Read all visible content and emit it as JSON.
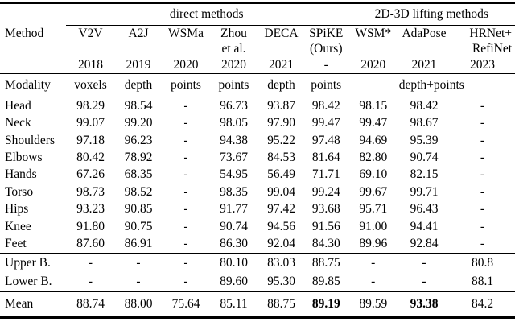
{
  "table": {
    "group_headers": {
      "left": "direct methods",
      "right": "2D-3D lifting methods"
    },
    "corner_label": "Method",
    "modality_label": "Modality",
    "lifting_modality": "depth+points",
    "columns": [
      {
        "name": "V2V",
        "sub": "",
        "year": "2018",
        "modality": "voxels"
      },
      {
        "name": "A2J",
        "sub": "",
        "year": "2019",
        "modality": "depth"
      },
      {
        "name": "WSMa",
        "sub": "",
        "year": "2020",
        "modality": "points"
      },
      {
        "name": "Zhou",
        "sub": "et al.",
        "year": "2020",
        "modality": "points"
      },
      {
        "name": "DECA",
        "sub": "",
        "year": "2021",
        "modality": "depth"
      },
      {
        "name": "SPiKE",
        "sub": "(Ours)",
        "year": "-",
        "modality": "points"
      },
      {
        "name": "WSM*",
        "sub": "",
        "year": "2020"
      },
      {
        "name": "AdaPose",
        "sub": "",
        "year": "2021"
      },
      {
        "name": "HRNet+",
        "sub": "RefiNet",
        "year": "2023"
      }
    ],
    "body_rows": [
      {
        "label": "Head",
        "values": [
          "98.29",
          "98.54",
          "-",
          "96.73",
          "93.87",
          "98.42",
          "98.15",
          "98.42",
          "-"
        ]
      },
      {
        "label": "Neck",
        "values": [
          "99.07",
          "99.20",
          "-",
          "98.05",
          "97.90",
          "99.47",
          "99.47",
          "98.67",
          "-"
        ]
      },
      {
        "label": "Shoulders",
        "values": [
          "97.18",
          "96.23",
          "-",
          "94.38",
          "95.22",
          "97.48",
          "94.69",
          "95.39",
          "-"
        ]
      },
      {
        "label": "Elbows",
        "values": [
          "80.42",
          "78.92",
          "-",
          "73.67",
          "84.53",
          "81.64",
          "82.80",
          "90.74",
          "-"
        ]
      },
      {
        "label": "Hands",
        "values": [
          "67.26",
          "68.35",
          "-",
          "54.95",
          "56.49",
          "71.71",
          "69.10",
          "82.15",
          "-"
        ]
      },
      {
        "label": "Torso",
        "values": [
          "98.73",
          "98.52",
          "-",
          "98.35",
          "99.04",
          "99.24",
          "99.67",
          "99.71",
          "-"
        ]
      },
      {
        "label": "Hips",
        "values": [
          "93.23",
          "90.85",
          "-",
          "91.77",
          "97.42",
          "93.68",
          "95.71",
          "96.43",
          "-"
        ]
      },
      {
        "label": "Knee",
        "values": [
          "91.80",
          "90.75",
          "-",
          "90.74",
          "94.56",
          "91.56",
          "91.00",
          "94.41",
          "-"
        ]
      },
      {
        "label": "Feet",
        "values": [
          "87.60",
          "86.91",
          "-",
          "86.30",
          "92.04",
          "84.30",
          "89.96",
          "92.84",
          "-"
        ]
      }
    ],
    "summary_rows": [
      {
        "label": "Upper B.",
        "values": [
          "-",
          "-",
          "-",
          "80.10",
          "83.03",
          "88.75",
          "-",
          "-",
          "80.8"
        ]
      },
      {
        "label": "Lower B.",
        "values": [
          "-",
          "-",
          "-",
          "89.60",
          "95.30",
          "89.85",
          "-",
          "-",
          "88.1"
        ]
      }
    ],
    "mean_row": {
      "label": "Mean",
      "values": [
        "88.74",
        "88.00",
        "75.64",
        "85.11",
        "88.75",
        "89.19",
        "89.59",
        "93.38",
        "84.2"
      ],
      "bold": [
        5,
        7
      ]
    },
    "colors": {
      "text": "#000000",
      "background": "#ffffff",
      "rule": "#000000"
    }
  }
}
